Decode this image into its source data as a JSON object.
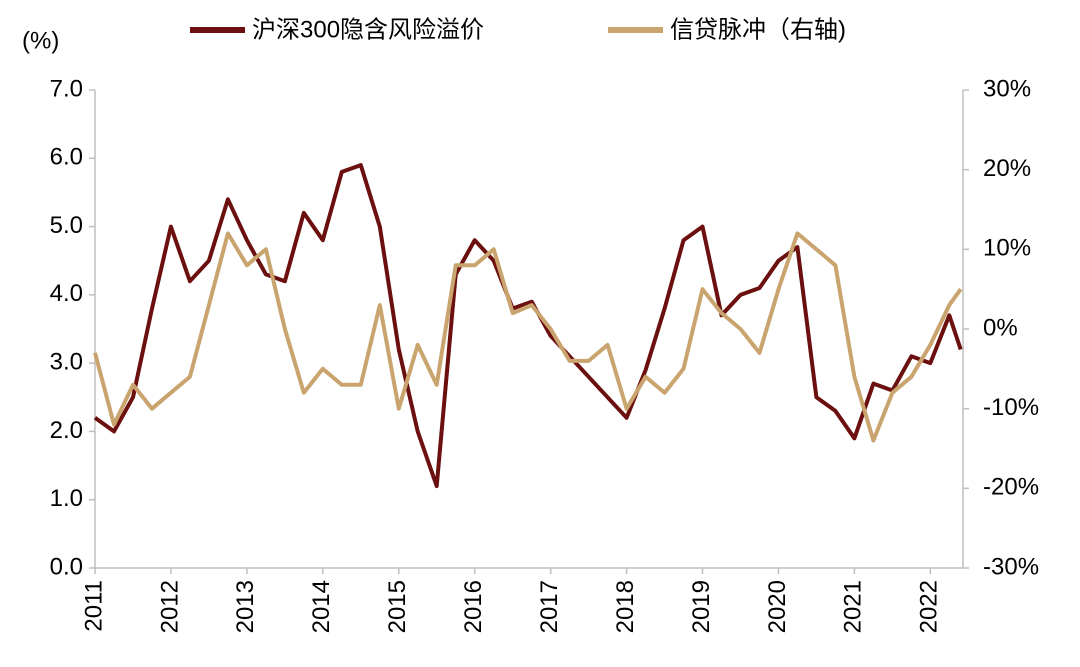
{
  "chart_data": {
    "type": "line",
    "axis_label": "(%)",
    "x": [
      2011,
      2011.25,
      2011.5,
      2011.75,
      2012,
      2012.25,
      2012.5,
      2012.75,
      2013,
      2013.25,
      2013.5,
      2013.75,
      2014,
      2014.25,
      2014.5,
      2014.75,
      2015,
      2015.25,
      2015.5,
      2015.75,
      2016,
      2016.25,
      2016.5,
      2016.75,
      2017,
      2017.25,
      2017.5,
      2017.75,
      2018,
      2018.25,
      2018.5,
      2018.75,
      2019,
      2019.25,
      2019.5,
      2019.75,
      2020,
      2020.25,
      2020.5,
      2020.75,
      2021,
      2021.25,
      2021.5,
      2021.75,
      2022,
      2022.25,
      2022.4
    ],
    "series": [
      {
        "name": "沪深300隐含风险溢价",
        "color": "#6b0f0f",
        "values": [
          2.2,
          2.0,
          2.5,
          3.8,
          5.0,
          4.2,
          4.5,
          5.4,
          4.8,
          4.3,
          4.2,
          5.2,
          4.8,
          5.8,
          5.9,
          5.0,
          3.2,
          2.0,
          1.2,
          4.3,
          4.8,
          4.5,
          3.8,
          3.9,
          3.4,
          3.1,
          2.8,
          2.5,
          2.2,
          2.9,
          3.8,
          4.8,
          5.0,
          3.7,
          4.0,
          4.1,
          4.5,
          4.7,
          2.5,
          2.3,
          1.9,
          2.7,
          2.6,
          3.1,
          3.0,
          3.7,
          3.2
        ]
      },
      {
        "name": "信贷脉冲（右轴)",
        "color": "#c9a46f",
        "axis": "y2",
        "values": [
          -3,
          -12,
          -7,
          -10,
          -8,
          -6,
          3,
          12,
          8,
          10,
          0,
          -8,
          -5,
          -7,
          -7,
          3,
          -10,
          -2,
          -7,
          8,
          8,
          10,
          2,
          3,
          0,
          -4,
          -4,
          -2,
          -10,
          -6,
          -8,
          -5,
          5,
          2,
          0,
          -3,
          5,
          12,
          10,
          8,
          -6,
          -14,
          -8,
          -6,
          -2,
          3,
          5
        ]
      }
    ],
    "xlim": [
      2011,
      2022.43
    ],
    "xticks": [
      2011,
      2012,
      2013,
      2014,
      2015,
      2016,
      2017,
      2018,
      2019,
      2020,
      2021,
      2022
    ],
    "ylim": [
      0,
      7
    ],
    "yticks": [
      {
        "value": 0,
        "label": "0.0"
      },
      {
        "value": 1,
        "label": "1.0"
      },
      {
        "value": 2,
        "label": "2.0"
      },
      {
        "value": 3,
        "label": "3.0"
      },
      {
        "value": 4,
        "label": "4.0"
      },
      {
        "value": 5,
        "label": "5.0"
      },
      {
        "value": 6,
        "label": "6.0"
      },
      {
        "value": 7,
        "label": "7.0"
      }
    ],
    "y2lim": [
      -30,
      30
    ],
    "y2ticks": [
      {
        "value": -30,
        "label": "-30%"
      },
      {
        "value": -20,
        "label": "-20%"
      },
      {
        "value": -10,
        "label": "-10%"
      },
      {
        "value": 0,
        "label": "0%"
      },
      {
        "value": 10,
        "label": "10%"
      },
      {
        "value": 20,
        "label": "20%"
      },
      {
        "value": 30,
        "label": "30%"
      }
    ],
    "legend": "top"
  }
}
